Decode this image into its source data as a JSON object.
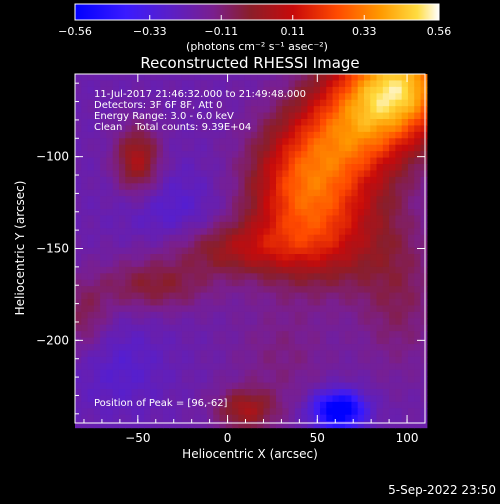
{
  "chart_data": {
    "type": "heatmap",
    "title": "Reconstructed RHESSI Image",
    "xlabel": "Heliocentric X (arcsec)",
    "ylabel": "Heliocentric Y (arcsec)",
    "xlim": [
      -85,
      110
    ],
    "ylim": [
      -245,
      -55
    ],
    "xticks": [
      {
        "v": -50,
        "label": "−50"
      },
      {
        "v": 0,
        "label": "0"
      },
      {
        "v": 50,
        "label": "50"
      },
      {
        "v": 100,
        "label": "100"
      }
    ],
    "yticks": [
      {
        "v": -100,
        "label": "−100"
      },
      {
        "v": -150,
        "label": "−150"
      },
      {
        "v": -200,
        "label": "−200"
      }
    ],
    "colorbar": {
      "min": -0.56,
      "max": 0.56,
      "ticks": [
        {
          "v": -0.56,
          "label": "−0.56"
        },
        {
          "v": -0.33,
          "label": "−0.33"
        },
        {
          "v": -0.11,
          "label": "−0.11"
        },
        {
          "v": 0.11,
          "label": "0.11"
        },
        {
          "v": 0.33,
          "label": "0.33"
        },
        {
          "v": 0.56,
          "label": "0.56"
        }
      ],
      "unit_label": "(photons cm⁻² s⁻¹ asec⁻²)"
    },
    "annotations": [
      "11-Jul-2017 21:46:32.000 to 21:49:48.000",
      "Detectors: 3F 6F 8F, Att 0",
      "Energy Range: 3.0 - 6.0 keV",
      "Clean    Total counts: 9.39E+04"
    ],
    "peak_label": "Position of Peak = [96,-62]",
    "sources": [
      {
        "x": 96,
        "y": -62,
        "amp": 0.62,
        "sx": 22,
        "sy": 20
      },
      {
        "x": 68,
        "y": -88,
        "amp": 0.38,
        "sx": 22,
        "sy": 22
      },
      {
        "x": 40,
        "y": -110,
        "amp": 0.28,
        "sx": 20,
        "sy": 22
      },
      {
        "x": 50,
        "y": -140,
        "amp": 0.3,
        "sx": 26,
        "sy": 22
      },
      {
        "x": -50,
        "y": -102,
        "amp": 0.26,
        "sx": 9,
        "sy": 13
      },
      {
        "x": 0,
        "y": -150,
        "amp": 0.2,
        "sx": 30,
        "sy": 10
      },
      {
        "x": -40,
        "y": -170,
        "amp": 0.18,
        "sx": 22,
        "sy": 10
      },
      {
        "x": -80,
        "y": -188,
        "amp": 0.13,
        "sx": 10,
        "sy": 14
      },
      {
        "x": 30,
        "y": -210,
        "amp": 0.08,
        "sx": 20,
        "sy": 20
      },
      {
        "x": 10,
        "y": -238,
        "amp": 0.22,
        "sx": 12,
        "sy": 8
      },
      {
        "x": 95,
        "y": -175,
        "amp": 0.12,
        "sx": 16,
        "sy": 30
      },
      {
        "x": 62,
        "y": -238,
        "amp": -0.45,
        "sx": 10,
        "sy": 7
      },
      {
        "x": -30,
        "y": -135,
        "amp": -0.1,
        "sx": 20,
        "sy": 20
      },
      {
        "x": -60,
        "y": -215,
        "amp": -0.08,
        "sx": 18,
        "sy": 18
      }
    ]
  },
  "footer": {
    "timestamp": "5-Sep-2022 23:50"
  }
}
